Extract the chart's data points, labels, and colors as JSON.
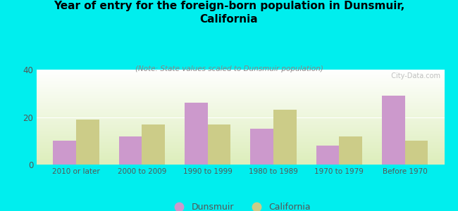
{
  "title": "Year of entry for the foreign-born population in Dunsmuir,\nCalifornia",
  "subtitle": "(Note: State values scaled to Dunsmuir population)",
  "categories": [
    "2010 or later",
    "2000 to 2009",
    "1990 to 1999",
    "1980 to 1989",
    "1970 to 1979",
    "Before 1970"
  ],
  "dunsmuir_values": [
    10,
    12,
    26,
    15,
    8,
    29
  ],
  "california_values": [
    19,
    17,
    17,
    23,
    12,
    10
  ],
  "dunsmuir_color": "#cc99cc",
  "california_color": "#cccc88",
  "background_color": "#00eeee",
  "ylim": [
    0,
    40
  ],
  "yticks": [
    0,
    20,
    40
  ],
  "bar_width": 0.35,
  "watermark": "  City-Data.com"
}
